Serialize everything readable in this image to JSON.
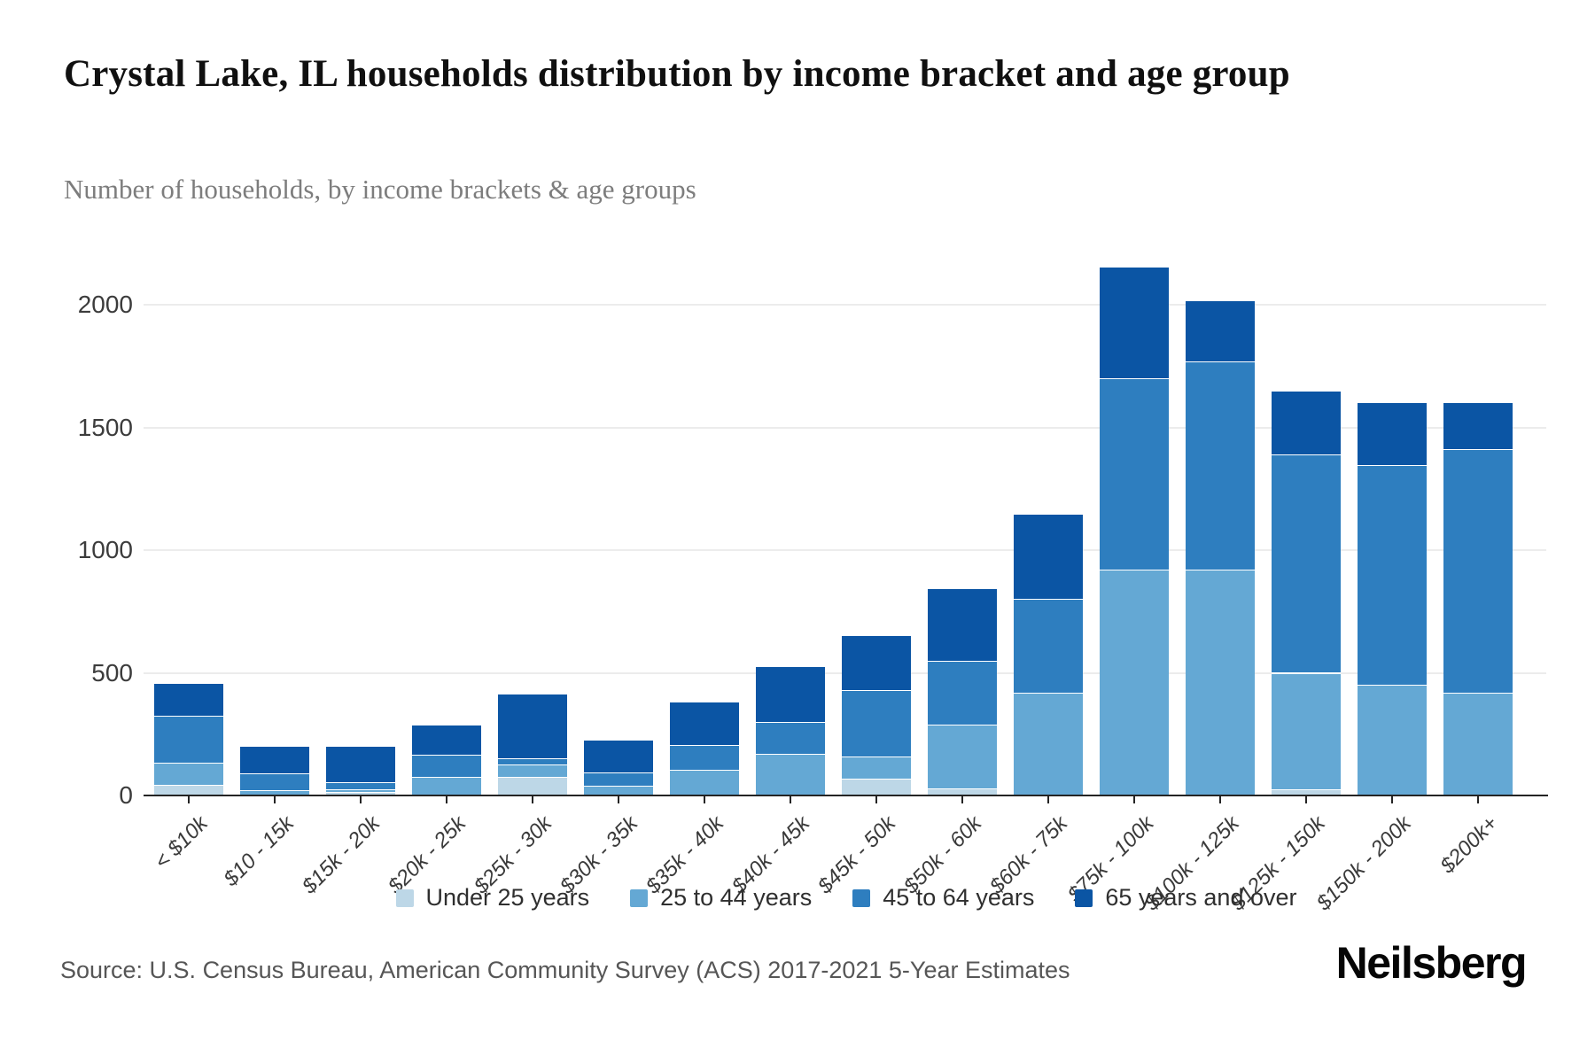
{
  "header": {
    "title": "Crystal Lake, IL households distribution by income bracket and age group",
    "subtitle": "Number of households, by income brackets & age groups"
  },
  "source": {
    "text": "Source: U.S. Census Bureau, American Community Survey (ACS) 2017-2021 5-Year Estimates"
  },
  "brand": {
    "logo_text": "Neilsberg"
  },
  "colors": {
    "background": "#ffffff",
    "grid": "#ececec",
    "axis": "#242424",
    "tick_text": "#3c3c3c",
    "subtitle_text": "#7d7d7d",
    "source_text": "#565656"
  },
  "chart_data": {
    "type": "bar",
    "stacked": true,
    "title": "Crystal Lake, IL households distribution by income bracket and age group",
    "subtitle": "Number of households, by income brackets & age groups",
    "xlabel": "",
    "ylabel": "Number of households",
    "ylim": [
      0,
      2150
    ],
    "yticks": [
      0,
      500,
      1000,
      1500,
      2000
    ],
    "grid": "horizontal",
    "legend_position": "bottom",
    "categories": [
      "< $10k",
      "$10 - 15k",
      "$15k - 20k",
      "$20k - 25k",
      "$25k - 30k",
      "$30k - 35k",
      "$35k - 40k",
      "$40k - 45k",
      "$45k - 50k",
      "$50k - 60k",
      "$60k - 75k",
      "$75k - 100k",
      "$100k - 125k",
      "$125k - 150k",
      "$150k - 200k",
      "$200k+"
    ],
    "series": [
      {
        "name": "Under 25 years",
        "color": "#bdd7e7",
        "values": [
          45,
          0,
          15,
          0,
          75,
          0,
          0,
          0,
          70,
          30,
          0,
          0,
          0,
          25,
          0,
          0
        ]
      },
      {
        "name": "25 to 44 years",
        "color": "#64a8d4",
        "values": [
          90,
          20,
          10,
          75,
          50,
          40,
          105,
          170,
          90,
          260,
          420,
          920,
          920,
          475,
          450,
          420
        ]
      },
      {
        "name": "45 to 64 years",
        "color": "#2e7ebf",
        "values": [
          190,
          70,
          30,
          90,
          25,
          55,
          100,
          130,
          270,
          260,
          380,
          780,
          850,
          890,
          895,
          990
        ]
      },
      {
        "name": "65 years and over",
        "color": "#0b55a4",
        "values": [
          130,
          110,
          145,
          120,
          260,
          130,
          175,
          225,
          220,
          290,
          345,
          450,
          245,
          255,
          255,
          190
        ]
      }
    ],
    "totals": [
      455,
      200,
      200,
      285,
      410,
      225,
      380,
      525,
      650,
      840,
      1145,
      2150,
      2015,
      1645,
      1600,
      1600
    ]
  }
}
